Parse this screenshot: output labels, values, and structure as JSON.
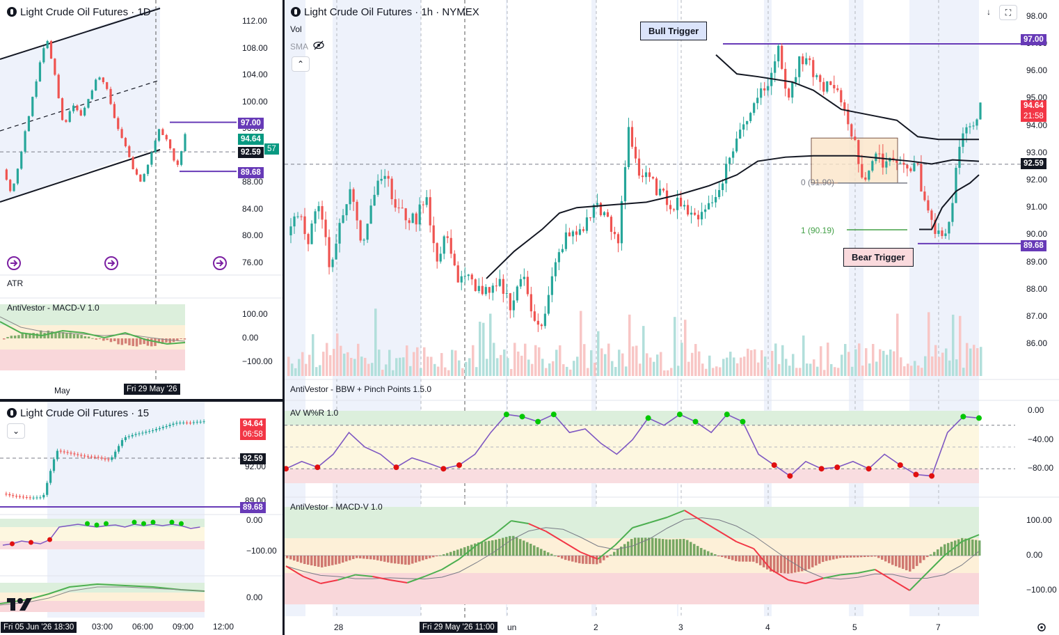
{
  "panels": {
    "daily": {
      "title": "Light Crude Oil Futures · 1D",
      "price_axis": [
        "112.00",
        "108.00",
        "104.00",
        "100.00",
        "96.00",
        "92.00",
        "88.00",
        "84.00",
        "80.00",
        "76.00"
      ],
      "atr_label": "ATR",
      "macd_label": "AntiVestor - MACD-V 1.0",
      "macd_axis": [
        "100.00",
        "0.00",
        "−100.00"
      ],
      "time_labels": [
        "May"
      ],
      "crosshair_time": "Fri 29 May '26",
      "tags": {
        "upper": "97.00",
        "last": "94.64",
        "last_extra": "57",
        "prev": "92.59",
        "lower": "89.68"
      }
    },
    "m15": {
      "title": "Light Crude Oil Futures · 15",
      "price_axis": [
        "92.00",
        "89.00"
      ],
      "wr_axis": [
        "0.00",
        "−100.00"
      ],
      "macd_axis": [
        "0.00"
      ],
      "time_labels": [
        "03:00",
        "06:00",
        "09:00",
        "12:00"
      ],
      "crosshair_time": "Fri 05 Jun '26   18:30",
      "tags": {
        "last": "94.64",
        "countdown": "06:58",
        "prev": "92.59",
        "lower": "89.68"
      }
    },
    "h1": {
      "title": "Light Crude Oil Futures · 1h · NYMEX",
      "vol_label": "Vol",
      "sma_label": "SMA",
      "price_axis": [
        "98.00",
        "97.00",
        "96.00",
        "95.00",
        "94.00",
        "93.00",
        "92.00",
        "91.00",
        "90.00",
        "89.00",
        "88.00",
        "87.00",
        "86.00"
      ],
      "bbw_label": "AntiVestor - BBW + Pinch Points 1.5.0",
      "wr_label": "AV W%R 1.0",
      "wr_axis": [
        "0.00",
        "−40.00",
        "−80.00"
      ],
      "macd_label": "AntiVestor - MACD-V 1.0",
      "macd_axis": [
        "100.00",
        "0.00",
        "−100.00"
      ],
      "time_labels": [
        "28",
        "2",
        "3",
        "4",
        "5",
        "7"
      ],
      "crosshair_time": "Fri 29 May '26   11:00",
      "partial_label": "un",
      "annotations": {
        "bull": "Bull Trigger",
        "bear": "Bear Trigger",
        "fib0": "0 (91.90)",
        "fib1": "1 (90.19)"
      },
      "tags": {
        "upper": "97.00",
        "last": "94.64",
        "countdown": "21:58",
        "prev": "92.59",
        "lower": "89.68"
      }
    }
  },
  "colors": {
    "up": "#26a69a",
    "down": "#ef5350",
    "purple": "#673ab7",
    "black": "#131722",
    "green_dot": "#00c800",
    "red_dot": "#e01010",
    "macd_green": "#4caf50",
    "macd_red": "#f23645"
  },
  "chart_data": [
    {
      "type": "candlestick",
      "title": "Light Crude Oil Futures · 1h · NYMEX",
      "x": [
        "28",
        "2",
        "3",
        "4",
        "5",
        "7"
      ],
      "ylim": [
        85.8,
        98.2
      ],
      "levels": {
        "bull_trigger": 97.0,
        "bear_trigger": 89.68,
        "last": 94.64,
        "prev_close": 92.59,
        "fib_0": 91.9,
        "fib_1": 90.19
      },
      "close_path": [
        90.0,
        90.9,
        89.8,
        91.4,
        88.8,
        90.4,
        91.7,
        89.7,
        91.4,
        92.5,
        91.1,
        90.7,
        90.5,
        91.6,
        88.9,
        90.1,
        88.3,
        88.4,
        88.0,
        87.8,
        88.2,
        87.4,
        88.6,
        87.1,
        86.7,
        88.7,
        89.9,
        90.0,
        90.4,
        91.2,
        90.5,
        89.6,
        94.0,
        92.2,
        92.0,
        91.5,
        91.1,
        91.3,
        90.5,
        91.0,
        91.2,
        92.3,
        93.4,
        94.2,
        95.1,
        95.6,
        96.8,
        95.0,
        96.3,
        96.2,
        95.5,
        95.4,
        94.9,
        93.7,
        92.0,
        92.8,
        92.7,
        92.9,
        92.4,
        92.6,
        90.8,
        90.1,
        90.2,
        93.2,
        94.0,
        94.64
      ]
    },
    {
      "type": "line",
      "title": "AV W%R 1.0",
      "ylim": [
        -100,
        0
      ],
      "values": [
        -80,
        -70,
        -78,
        -60,
        -30,
        -50,
        -60,
        -78,
        -65,
        -72,
        -80,
        -75,
        -60,
        -30,
        -5,
        -8,
        -15,
        -5,
        -30,
        -25,
        -45,
        -60,
        -40,
        -10,
        -20,
        -5,
        -15,
        -30,
        -5,
        -15,
        -60,
        -75,
        -90,
        -70,
        -80,
        -78,
        -70,
        -80,
        -60,
        -75,
        -88,
        -90,
        -30,
        -8,
        -10
      ]
    },
    {
      "type": "line",
      "title": "AntiVestor - MACD-V 1.0",
      "ylim": [
        -140,
        140
      ],
      "values": [
        -30,
        -60,
        -80,
        -70,
        -55,
        -60,
        -70,
        -78,
        -60,
        -40,
        -10,
        30,
        60,
        100,
        92,
        70,
        40,
        10,
        -10,
        30,
        80,
        95,
        110,
        130,
        100,
        70,
        40,
        20,
        -40,
        -70,
        -80,
        -65,
        -55,
        -50,
        -40,
        -70,
        -100,
        -50,
        0,
        40,
        60
      ]
    }
  ]
}
